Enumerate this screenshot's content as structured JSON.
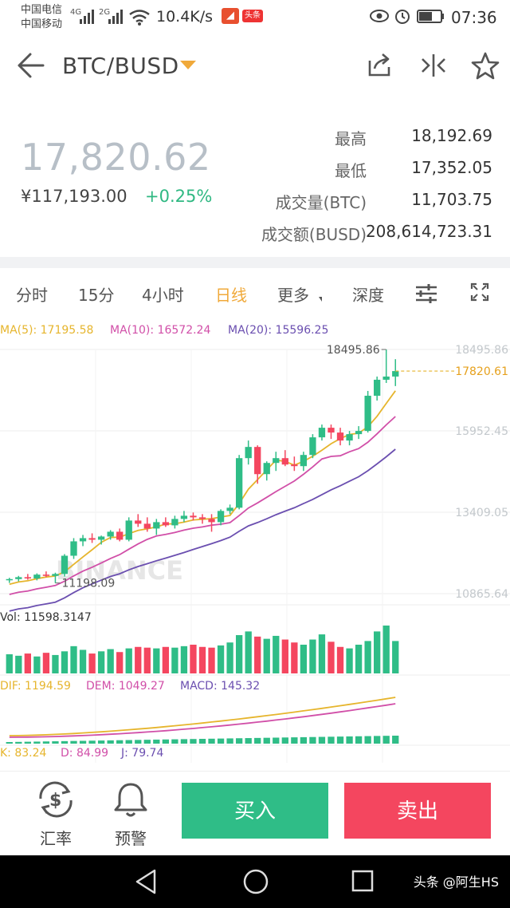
{
  "status_bar": {
    "carrier1": "中国电信",
    "carrier2": "中国移动",
    "sig1": "4G",
    "sig2": "2G",
    "net_speed": "10.4K/s",
    "app_badge": "头条",
    "time": "07:36"
  },
  "header": {
    "pair": "BTC/BUSD"
  },
  "ticker": {
    "price": "17,820.62",
    "cny": "¥117,193.00",
    "change": "+0.25%",
    "stats": [
      {
        "label": "最高",
        "value": "18,192.69"
      },
      {
        "label": "最低",
        "value": "17,352.05"
      },
      {
        "label": "成交量(BTC)",
        "value": "11,703.75"
      },
      {
        "label": "成交额(BUSD)",
        "value": "208,614,723.31"
      }
    ]
  },
  "tabs": [
    "分时",
    "15分",
    "4小时",
    "日线",
    "更多",
    "深度"
  ],
  "active_tab": "日线",
  "colors": {
    "up": "#2fbd87",
    "down": "#f4465f",
    "ma5": "#e6b52d",
    "ma10": "#d14fa8",
    "ma20": "#6b4fb0",
    "accent": "#f0a93a"
  },
  "chart_data": {
    "type": "candlestick",
    "watermark": "BINANCE",
    "ma_labels": [
      "MA(5): 17195.58",
      "MA(10): 16572.24",
      "MA(20): 15596.25"
    ],
    "y_ticks": [
      "18495.86",
      "15952.45",
      "13409.05",
      "10865.64"
    ],
    "high_label": "18495.86",
    "low_label": "11198.09",
    "last_price_label": "17820.61",
    "ylim": [
      10865.64,
      18495.86
    ],
    "candles": [
      [
        11300,
        11360,
        11200,
        11320
      ],
      [
        11320,
        11420,
        11250,
        11380
      ],
      [
        11380,
        11480,
        11300,
        11340
      ],
      [
        11340,
        11500,
        11280,
        11460
      ],
      [
        11460,
        11560,
        11380,
        11420
      ],
      [
        11420,
        11520,
        11198,
        11480
      ],
      [
        11480,
        12100,
        11400,
        12050
      ],
      [
        12050,
        12600,
        11950,
        12500
      ],
      [
        12500,
        12700,
        12350,
        12600
      ],
      [
        12600,
        12750,
        12450,
        12550
      ],
      [
        12550,
        12680,
        12400,
        12650
      ],
      [
        12650,
        12850,
        12550,
        12800
      ],
      [
        12800,
        12900,
        12500,
        12550
      ],
      [
        12550,
        13250,
        12500,
        13150
      ],
      [
        13150,
        13350,
        12950,
        13050
      ],
      [
        13050,
        13250,
        12800,
        12900
      ],
      [
        12900,
        13200,
        12700,
        13100
      ],
      [
        13100,
        13250,
        12950,
        13000
      ],
      [
        13000,
        13300,
        12900,
        13200
      ],
      [
        13200,
        13450,
        13100,
        13300
      ],
      [
        13300,
        13400,
        13150,
        13250
      ],
      [
        13250,
        13350,
        13050,
        13200
      ],
      [
        13200,
        13350,
        12800,
        13100
      ],
      [
        13100,
        13500,
        13000,
        13450
      ],
      [
        13450,
        13650,
        13350,
        13550
      ],
      [
        13550,
        15200,
        13500,
        15100
      ],
      [
        15100,
        15650,
        14900,
        15450
      ],
      [
        15450,
        15500,
        14300,
        14600
      ],
      [
        14600,
        15000,
        14400,
        14950
      ],
      [
        14950,
        15300,
        14700,
        15100
      ],
      [
        15100,
        15350,
        14850,
        14900
      ],
      [
        14900,
        15150,
        14700,
        14850
      ],
      [
        14850,
        15300,
        14700,
        15200
      ],
      [
        15200,
        15850,
        15100,
        15750
      ],
      [
        15750,
        16150,
        15650,
        16050
      ],
      [
        16050,
        16150,
        15700,
        15900
      ],
      [
        15900,
        16050,
        15500,
        15650
      ],
      [
        15650,
        15950,
        15500,
        15850
      ],
      [
        15850,
        16100,
        15700,
        15950
      ],
      [
        15950,
        17200,
        15900,
        17050
      ],
      [
        17050,
        17650,
        16900,
        17550
      ],
      [
        17550,
        18495.86,
        17450,
        17650
      ],
      [
        17650,
        18192.69,
        17352.05,
        17820.62
      ]
    ],
    "volume_label": "Vol: 11598.3147",
    "volumes": [
      2600,
      2400,
      2700,
      2300,
      2800,
      2500,
      3000,
      3700,
      3200,
      2700,
      3000,
      3300,
      2900,
      3400,
      3600,
      3500,
      3400,
      3600,
      3500,
      3700,
      3900,
      3600,
      3500,
      3800,
      4200,
      5200,
      5700,
      5000,
      4700,
      5100,
      4600,
      4200,
      3900,
      4600,
      5300,
      4300,
      3600,
      3400,
      3900,
      4400,
      5700,
      6500,
      4400
    ],
    "macd_labels": [
      "DIF: 1194.59",
      "DEM: 1049.27",
      "MACD: 145.32"
    ],
    "kdj_labels": [
      "K: 83.24",
      "D: 84.99",
      "J: 79.74"
    ]
  },
  "actions": {
    "rate": "汇率",
    "alert": "预警",
    "buy": "买入",
    "sell": "卖出"
  },
  "nav": {
    "watermark": "头条 @阿生HS"
  }
}
